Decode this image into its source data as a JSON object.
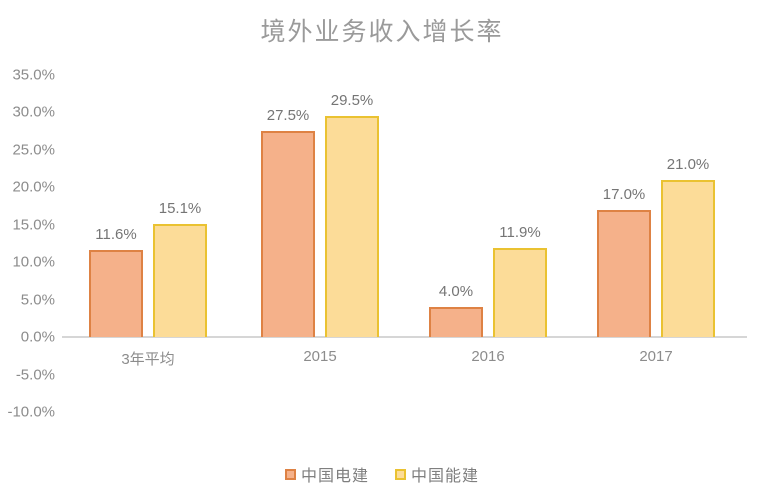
{
  "title": "境外业务收入增长率",
  "colors": {
    "series1_fill": "#F5B18A",
    "series1_border": "#DE8244",
    "series2_fill": "#FCDC98",
    "series2_border": "#EAC231",
    "axis_line": "#d6d6d6",
    "title_text": "#9a9a9a",
    "axis_text": "#8c8c8c",
    "data_label_text": "#757575"
  },
  "chart_data": {
    "type": "bar",
    "title": "境外业务收入增长率",
    "categories": [
      "3年平均",
      "2015",
      "2016",
      "2017"
    ],
    "series": [
      {
        "name": "中国电建",
        "values": [
          11.6,
          27.5,
          4.0,
          17.0
        ],
        "fill": "#F5B18A",
        "border": "#DE8244"
      },
      {
        "name": "中国能建",
        "values": [
          15.1,
          29.5,
          11.9,
          21.0
        ],
        "fill": "#FCDC98",
        "border": "#EAC231"
      }
    ],
    "data_labels": [
      [
        "11.6%",
        "27.5%",
        "4.0%",
        "17.0%"
      ],
      [
        "15.1%",
        "29.5%",
        "11.9%",
        "21.0%"
      ]
    ],
    "xlabel": "",
    "ylabel": "",
    "y_axis": {
      "min": -10,
      "max": 35,
      "step": 5,
      "tick_labels": [
        "35.0%",
        "30.0%",
        "25.0%",
        "20.0%",
        "15.0%",
        "10.0%",
        "5.0%",
        "0.0%",
        "-5.0%",
        "-10.0%"
      ]
    },
    "grid": false,
    "legend_position": "bottom"
  }
}
